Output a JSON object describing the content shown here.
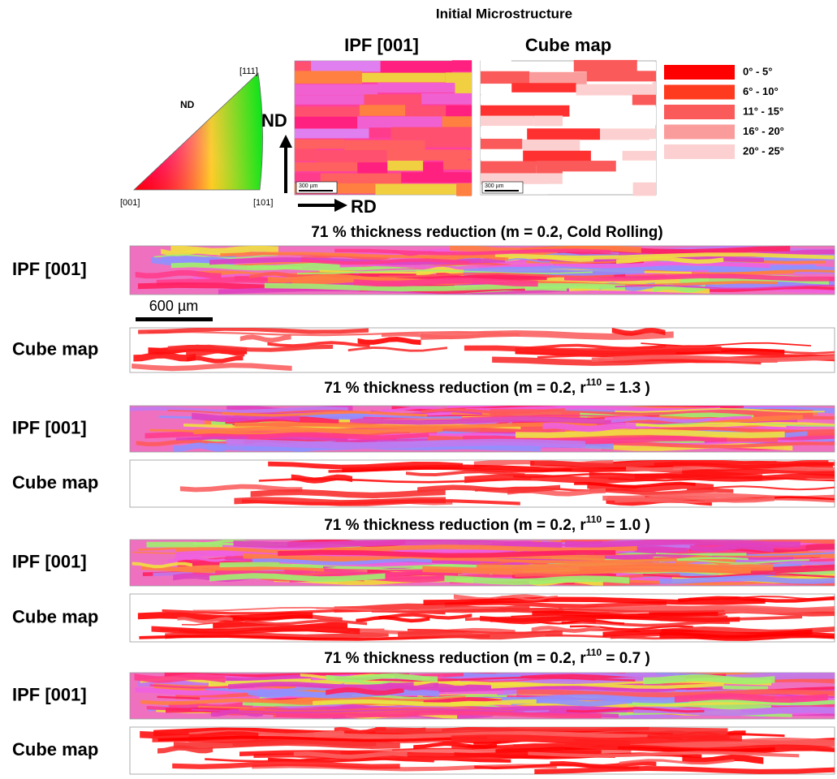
{
  "header": {
    "title": "Initial Microstructure"
  },
  "initial": {
    "ipf_label": "IPF [001]",
    "cube_label": "Cube map",
    "scale_bar": "300 µm",
    "triangle": {
      "nd": "ND",
      "top": "[111]",
      "left": "[001]",
      "right": "[101]"
    },
    "axes": {
      "nd": "ND",
      "rd": "RD"
    }
  },
  "legend": [
    {
      "label": "0° - 5°",
      "color": "#ff0000"
    },
    {
      "label": "6° - 10°",
      "color": "#ff3b1f"
    },
    {
      "label": "11° - 15°",
      "color": "#fb5a5a"
    },
    {
      "label": "16° - 20°",
      "color": "#fb9c9c"
    },
    {
      "label": "20° - 25°",
      "color": "#fcd0d0"
    }
  ],
  "sections": [
    {
      "title": {
        "prefix": "71 % thickness reduction (m = 0.2, Cold Rolling)"
      },
      "ipf_label": "IPF [001]",
      "cube_label": "Cube map",
      "scale_bar": "600 µm"
    },
    {
      "title": {
        "prefix": "71 % thickness reduction (m = 0.2, r",
        "superscript": "110",
        "suffix": " = 1.3 )"
      },
      "ipf_label": "IPF [001]",
      "cube_label": "Cube map"
    },
    {
      "title": {
        "prefix": "71 % thickness reduction (m = 0.2, r",
        "superscript": "110",
        "suffix": " = 1.0 )"
      },
      "ipf_label": "IPF [001]",
      "cube_label": "Cube map"
    },
    {
      "title": {
        "prefix": "71 % thickness reduction (m = 0.2, r",
        "superscript": "110",
        "suffix": " = 0.7 )"
      },
      "ipf_label": "IPF [001]",
      "cube_label": "Cube map"
    }
  ]
}
